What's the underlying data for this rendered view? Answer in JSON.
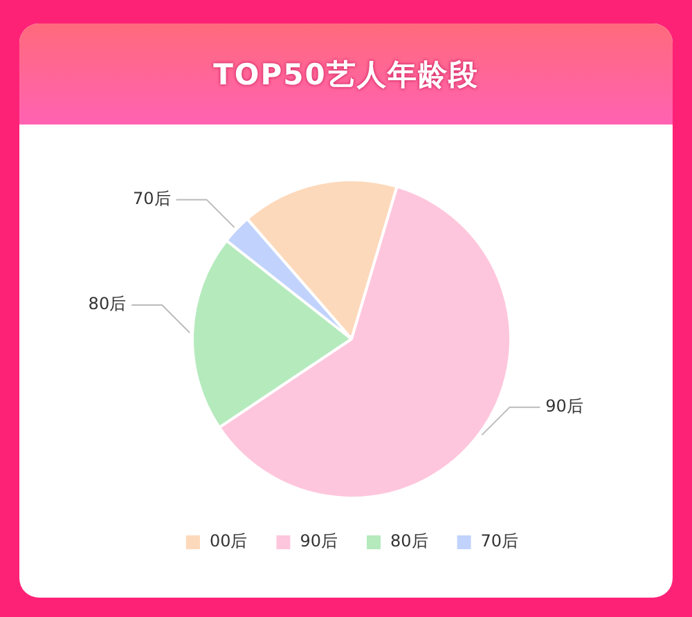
{
  "chart_data": {
    "type": "pie",
    "title": "TOP50艺人年龄段",
    "categories": [
      "00后",
      "90后",
      "80后",
      "70后"
    ],
    "values": [
      16,
      61,
      20,
      3
    ],
    "colors": [
      "#fdd9bb",
      "#fec6dc",
      "#b5eabd",
      "#c1d3fd"
    ],
    "legend": "bottom",
    "annotations": [
      {
        "text": "70后",
        "x": "70后"
      },
      {
        "text": "80后",
        "x": "80后"
      },
      {
        "text": "90后",
        "x": "90后"
      }
    ]
  }
}
